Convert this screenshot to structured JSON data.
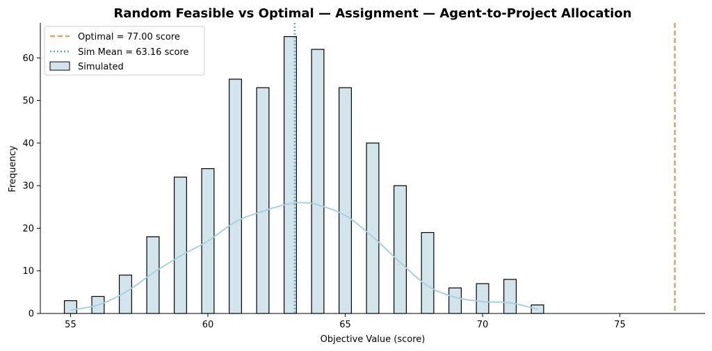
{
  "chart_data": {
    "type": "bar",
    "title": "Random Feasible vs Optimal — Assignment — Agent-to-Project Allocation",
    "xlabel": "Objective Value (score)",
    "ylabel": "Frequency",
    "xlim": [
      53.9,
      78.1
    ],
    "ylim": [
      0,
      68.2
    ],
    "x_ticks": [
      55,
      60,
      65,
      70,
      75
    ],
    "y_ticks": [
      0,
      10,
      20,
      30,
      40,
      50,
      60
    ],
    "bar_width": 0.45,
    "bars": [
      {
        "x": 55,
        "count": 3
      },
      {
        "x": 56,
        "count": 4
      },
      {
        "x": 57,
        "count": 9
      },
      {
        "x": 58,
        "count": 18
      },
      {
        "x": 59,
        "count": 32
      },
      {
        "x": 60,
        "count": 34
      },
      {
        "x": 61,
        "count": 55
      },
      {
        "x": 62,
        "count": 53
      },
      {
        "x": 63,
        "count": 65
      },
      {
        "x": 64,
        "count": 62
      },
      {
        "x": 65,
        "count": 53
      },
      {
        "x": 66,
        "count": 40
      },
      {
        "x": 67,
        "count": 30
      },
      {
        "x": 68,
        "count": 19
      },
      {
        "x": 69,
        "count": 6
      },
      {
        "x": 70,
        "count": 7
      },
      {
        "x": 71,
        "count": 8
      },
      {
        "x": 72,
        "count": 2
      }
    ],
    "kde": {
      "x": [
        55,
        56,
        57,
        58,
        59,
        60,
        61,
        62,
        63,
        63.5,
        64,
        65,
        66,
        67,
        68,
        69,
        70,
        71,
        72
      ],
      "y": [
        0.8,
        2.0,
        5.0,
        9.5,
        13.5,
        17.0,
        21.5,
        24.0,
        25.8,
        26.0,
        25.5,
        23.0,
        18.0,
        12.0,
        6.5,
        3.8,
        2.8,
        2.5,
        1.0
      ]
    },
    "optimal": 77.0,
    "sim_mean": 63.16,
    "legend": {
      "position": "top-left",
      "optimal_label": "Optimal = 77.00 score",
      "mean_label": "Sim Mean = 63.16 score",
      "simulated_label": "Simulated"
    },
    "grid": false,
    "colors": {
      "bar_fill": "#d3e5ec",
      "bar_edge": "#000000",
      "kde": "#a8d0de",
      "optimal": "#d4a66a",
      "mean": "#6aa8bd"
    }
  }
}
